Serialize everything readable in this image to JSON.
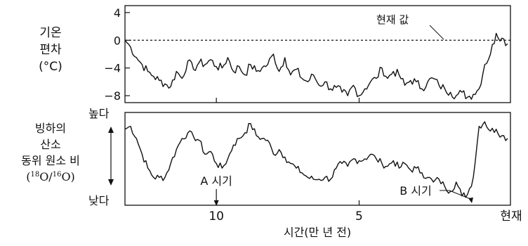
{
  "chart_data": [
    {
      "type": "line",
      "title": "",
      "ylabel": [
        "기온",
        "편차",
        "(°C)"
      ],
      "xlabel": "시간(만 년 전)",
      "x_reversed": true,
      "xlim": [
        13.2,
        -0.3
      ],
      "ylim": [
        -9,
        5
      ],
      "yticks": [
        4,
        0,
        -4,
        -8
      ],
      "ytick_labels": [
        "4",
        "0",
        "−4",
        "−8"
      ],
      "reference_line": {
        "y": 0,
        "style": "dashed",
        "label": "현재 값"
      },
      "series": [
        {
          "x": [
            13.2,
            13.0,
            12.8,
            12.6,
            12.4,
            12.2,
            12.0,
            11.8,
            11.6,
            11.4,
            11.2,
            11.0,
            10.8,
            10.6,
            10.4,
            10.2,
            10.0,
            9.8,
            9.6,
            9.4,
            9.2,
            9.0,
            8.8,
            8.6,
            8.4,
            8.2,
            8.0,
            7.8,
            7.6,
            7.4,
            7.2,
            7.0,
            6.8,
            6.6,
            6.4,
            6.2,
            6.0,
            5.8,
            5.6,
            5.4,
            5.2,
            5.0,
            4.8,
            4.6,
            4.4,
            4.2,
            4.0,
            3.8,
            3.6,
            3.4,
            3.2,
            3.0,
            2.8,
            2.6,
            2.4,
            2.2,
            2.0,
            1.8,
            1.6,
            1.4,
            1.2,
            1.0,
            0.8,
            0.6,
            0.4,
            0.2,
            0.0,
            -0.2
          ],
          "values": [
            0,
            -1,
            -2.5,
            -3.5,
            -4.5,
            -5.2,
            -5.8,
            -6.3,
            -6.7,
            -4.5,
            -5.5,
            -3.0,
            -4.2,
            -3.2,
            -3.5,
            -2.8,
            -3.8,
            -4.0,
            -2.5,
            -4.5,
            -3.8,
            -5.0,
            -3.5,
            -4.5,
            -4.0,
            -3.5,
            -2.0,
            -4.5,
            -2.5,
            -5.0,
            -4.2,
            -5.5,
            -6.0,
            -5.0,
            -6.5,
            -6.0,
            -7.0,
            -6.8,
            -7.5,
            -8.0,
            -6.5,
            -8.0,
            -7.0,
            -6.0,
            -5.5,
            -4.0,
            -5.5,
            -4.5,
            -5.0,
            -6.5,
            -5.8,
            -6.0,
            -7.0,
            -6.0,
            -5.5,
            -6.5,
            -7.0,
            -7.5,
            -8.0,
            -7.5,
            -8.2,
            -7.8,
            -7.0,
            -3.5,
            -2.0,
            1.0,
            0.3,
            -0.5
          ]
        }
      ]
    },
    {
      "type": "line",
      "title": "",
      "ylabel": [
        "빙하의",
        "산소",
        "동위 원소 비",
        "(18O/16O)"
      ],
      "y_top_label": "높다",
      "y_bottom_label": "낮다",
      "x_reversed": true,
      "xlim": [
        13.2,
        -0.3
      ],
      "xticks": [
        10,
        5,
        0
      ],
      "xtick_labels": [
        "10",
        "5",
        "현재"
      ],
      "xlabel": "시간(만 년 전)",
      "annotations": [
        {
          "text": "A 시기",
          "x": 10.0
        },
        {
          "text": "B 시기",
          "x": 1.2
        }
      ],
      "series": [
        {
          "x": [
            13.2,
            13.0,
            12.8,
            12.6,
            12.4,
            12.2,
            12.0,
            11.8,
            11.6,
            11.4,
            11.2,
            11.0,
            10.8,
            10.6,
            10.4,
            10.2,
            10.0,
            9.8,
            9.6,
            9.4,
            9.2,
            9.0,
            8.8,
            8.6,
            8.4,
            8.2,
            8.0,
            7.8,
            7.6,
            7.4,
            7.2,
            7.0,
            6.8,
            6.6,
            6.4,
            6.2,
            6.0,
            5.8,
            5.6,
            5.4,
            5.2,
            5.0,
            4.8,
            4.6,
            4.4,
            4.2,
            4.0,
            3.8,
            3.6,
            3.4,
            3.2,
            3.0,
            2.8,
            2.6,
            2.4,
            2.2,
            2.0,
            1.8,
            1.6,
            1.4,
            1.2,
            1.0,
            0.8,
            0.6,
            0.4,
            0.2,
            0.0,
            -0.2
          ],
          "values": [
            0.82,
            0.85,
            0.72,
            0.55,
            0.4,
            0.3,
            0.3,
            0.3,
            0.45,
            0.6,
            0.72,
            0.78,
            0.74,
            0.7,
            0.55,
            0.58,
            0.45,
            0.4,
            0.5,
            0.65,
            0.72,
            0.78,
            0.88,
            0.75,
            0.72,
            0.7,
            0.55,
            0.6,
            0.52,
            0.45,
            0.4,
            0.35,
            0.3,
            0.28,
            0.28,
            0.3,
            0.28,
            0.4,
            0.45,
            0.42,
            0.5,
            0.48,
            0.5,
            0.55,
            0.5,
            0.45,
            0.42,
            0.48,
            0.4,
            0.45,
            0.38,
            0.4,
            0.35,
            0.3,
            0.25,
            0.28,
            0.2,
            0.15,
            0.25,
            0.1,
            0.12,
            0.3,
            0.85,
            0.9,
            0.8,
            0.82,
            0.75,
            0.72
          ]
        }
      ]
    }
  ]
}
